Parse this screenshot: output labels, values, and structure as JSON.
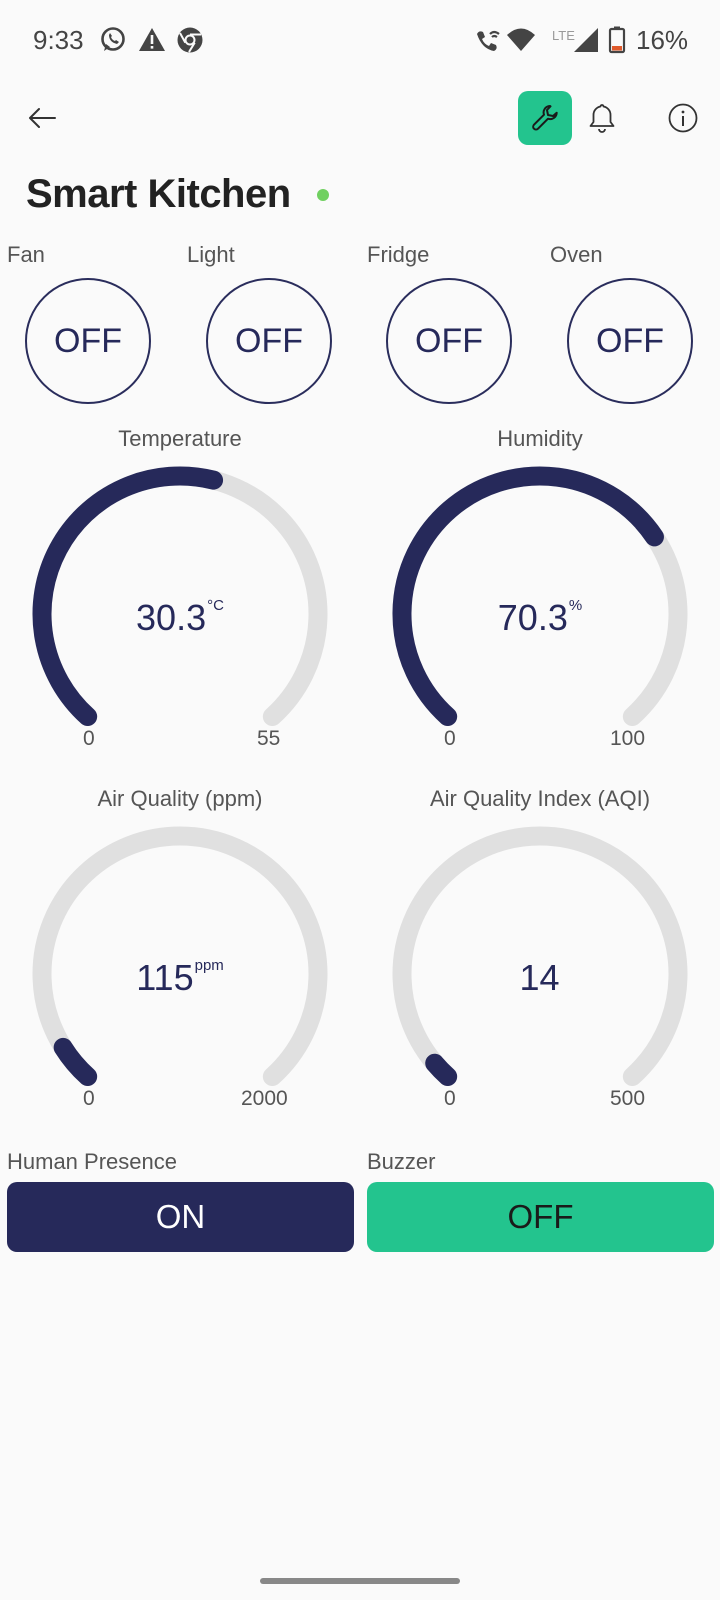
{
  "status_bar": {
    "time": "9:33",
    "network": "LTE",
    "battery": "16%",
    "icons": [
      "whatsapp-icon",
      "warning-icon",
      "chrome-icon",
      "wifi-call-icon",
      "wifi-icon",
      "signal-icon",
      "battery-icon"
    ]
  },
  "app_bar": {
    "icons": [
      "back-arrow-icon",
      "wrench-icon",
      "bell-icon",
      "info-icon"
    ],
    "accent_color": "#23c48e"
  },
  "page": {
    "title": "Smart Kitchen",
    "status_color": "#70d060"
  },
  "switches": [
    {
      "label": "Fan",
      "state": "OFF"
    },
    {
      "label": "Light",
      "state": "OFF"
    },
    {
      "label": "Fridge",
      "state": "OFF"
    },
    {
      "label": "Oven",
      "state": "OFF"
    }
  ],
  "gauges": [
    {
      "title": "Temperature",
      "value": "30.3",
      "unit": "°C",
      "min": "0",
      "max": "55",
      "fraction": 0.551
    },
    {
      "title": "Humidity",
      "value": "70.3",
      "unit": "%",
      "min": "0",
      "max": "100",
      "fraction": 0.703
    },
    {
      "title": "Air Quality (ppm)",
      "value": "115",
      "unit": "ppm",
      "min": "0",
      "max": "2000",
      "fraction": 0.0575
    },
    {
      "title": "Air Quality Index (AQI)",
      "value": "14",
      "unit": "",
      "min": "0",
      "max": "500",
      "fraction": 0.028
    }
  ],
  "buttons": [
    {
      "label": "Human Presence",
      "state": "ON",
      "bg_color": "#26295a",
      "text_color": "#ffffff"
    },
    {
      "label": "Buzzer",
      "state": "OFF",
      "bg_color": "#23c48e",
      "text_color": "#1a1a1a"
    }
  ],
  "colors": {
    "gauge_fill": "#26295a",
    "gauge_track": "#e0e0e0"
  }
}
